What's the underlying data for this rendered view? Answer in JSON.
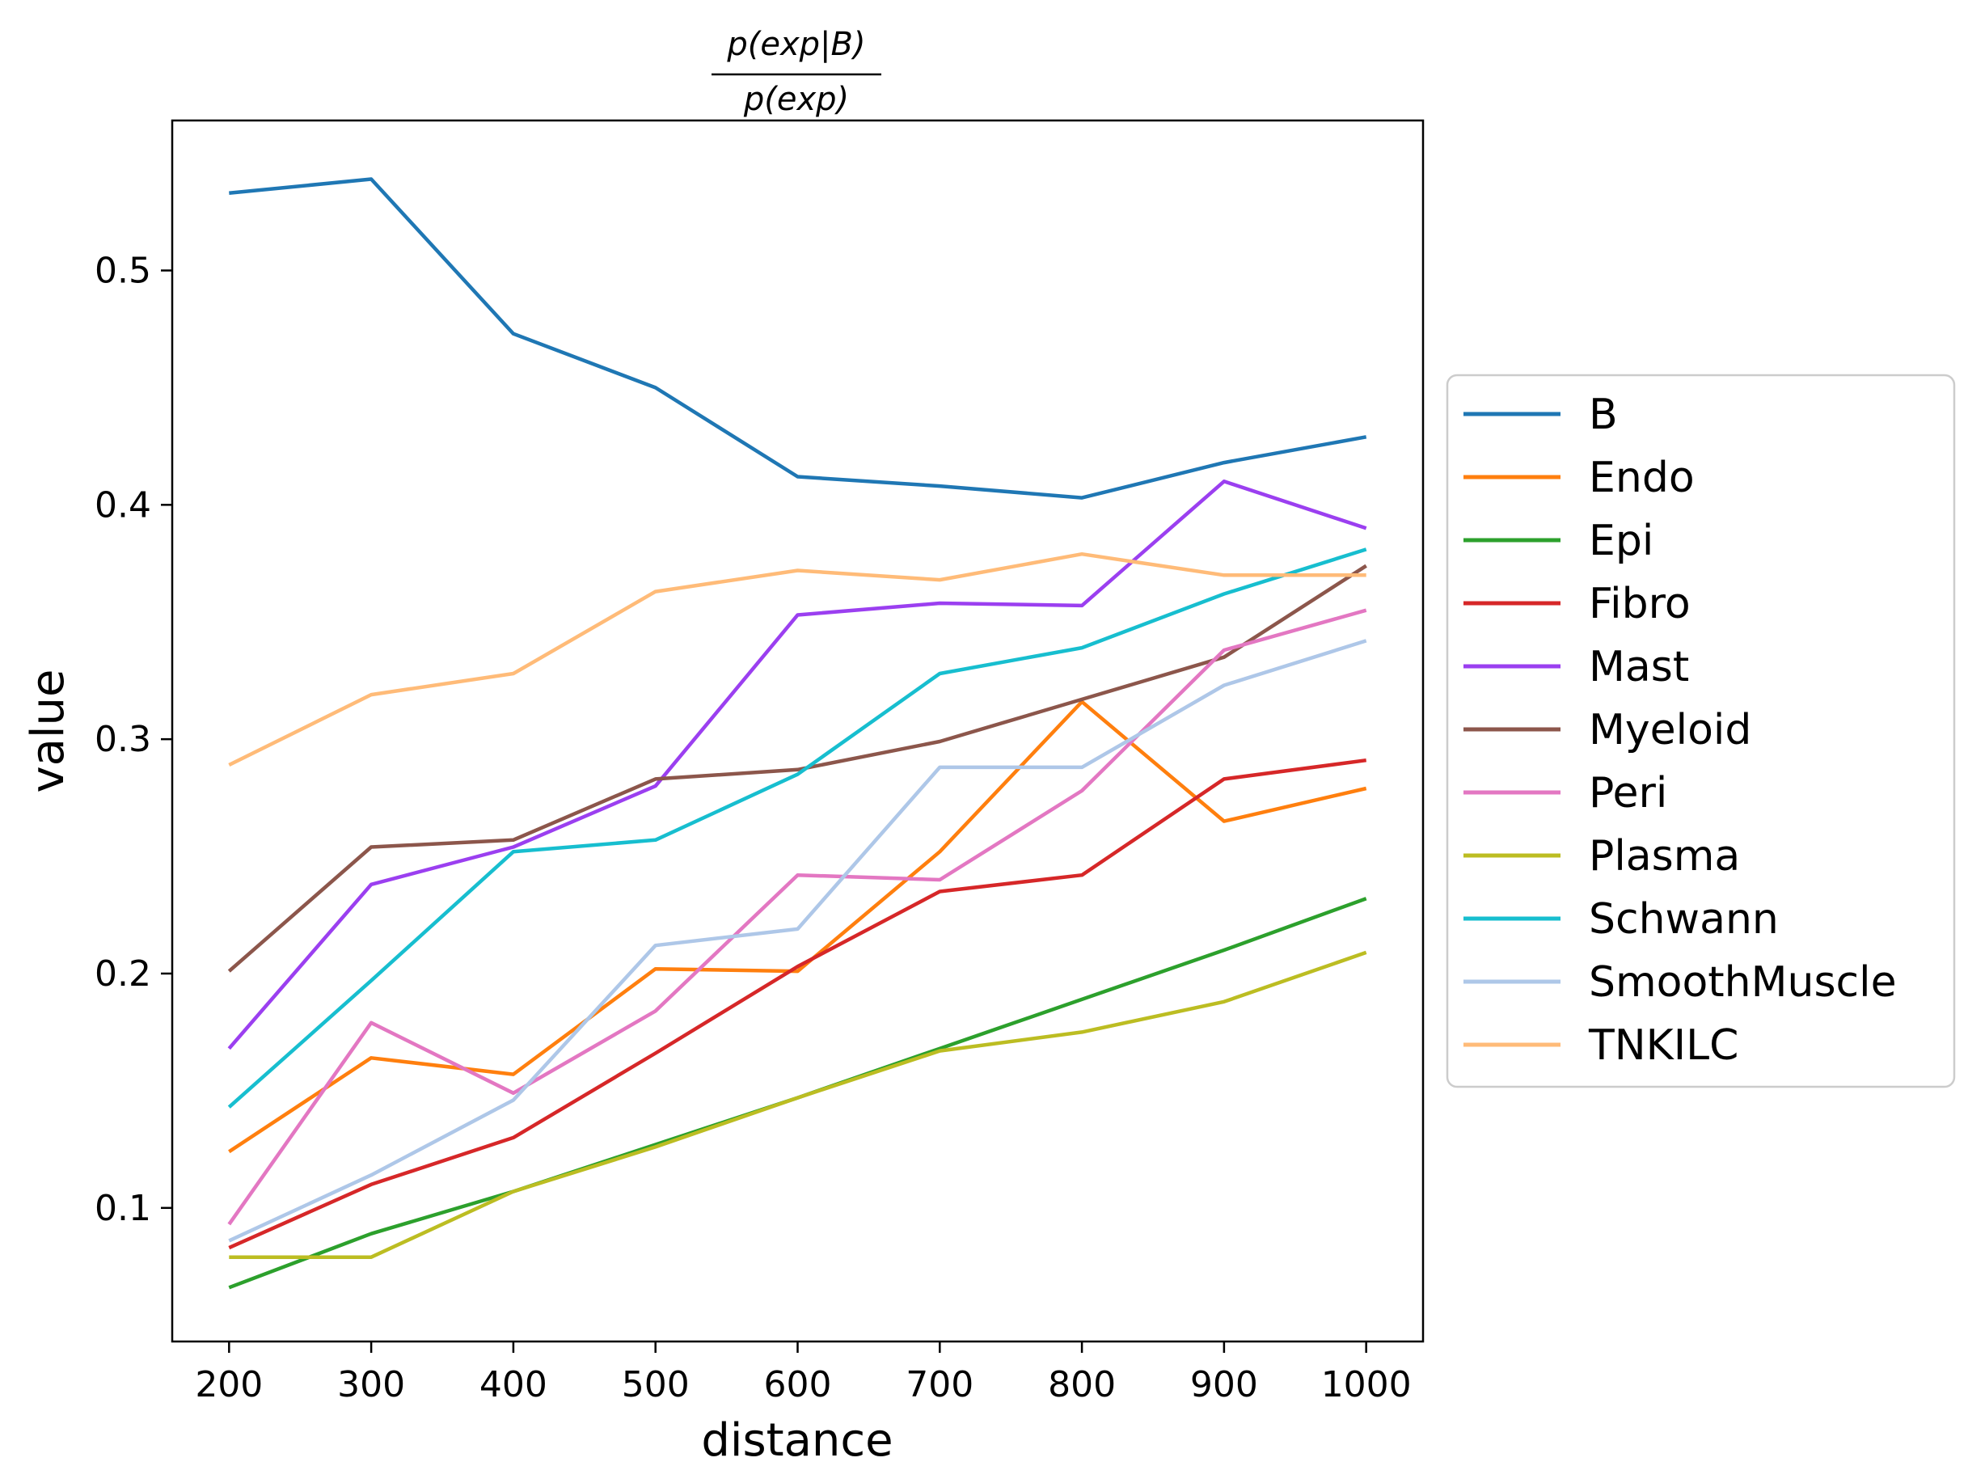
{
  "chart_data": {
    "type": "line",
    "title": {
      "numerator": "p(exp|B)",
      "denominator": "p(exp)"
    },
    "xlabel": "distance",
    "ylabel": "value",
    "x": [
      200,
      300,
      400,
      500,
      600,
      700,
      800,
      900,
      1000
    ],
    "x_ticks": [
      200,
      300,
      400,
      500,
      600,
      700,
      800,
      900,
      1000
    ],
    "y_ticks": [
      0.1,
      0.2,
      0.3,
      0.4,
      0.5
    ],
    "y_tick_labels": [
      "0.1",
      "0.2",
      "0.3",
      "0.4",
      "0.5"
    ],
    "xlim": [
      160,
      1040
    ],
    "ylim": [
      0.043,
      0.564
    ],
    "grid": false,
    "legend_position": "right, outside the plot area, vertically centered",
    "series": [
      {
        "name": "B",
        "color": "#1f77b4",
        "values": [
          0.533,
          0.539,
          0.473,
          0.45,
          0.412,
          0.408,
          0.403,
          0.418,
          0.429
        ]
      },
      {
        "name": "Endo",
        "color": "#ff7f0e",
        "values": [
          0.124,
          0.164,
          0.157,
          0.202,
          0.201,
          0.252,
          0.316,
          0.265,
          0.279
        ]
      },
      {
        "name": "Epi",
        "color": "#2ca02c",
        "values": [
          0.066,
          0.089,
          0.107,
          0.127,
          0.147,
          0.168,
          0.189,
          0.21,
          0.232
        ]
      },
      {
        "name": "Fibro",
        "color": "#d62728",
        "values": [
          0.083,
          0.11,
          0.13,
          0.166,
          0.203,
          0.235,
          0.242,
          0.283,
          0.291
        ]
      },
      {
        "name": "Mast",
        "color": "#9b3ff0",
        "values": [
          0.168,
          0.238,
          0.254,
          0.28,
          0.353,
          0.358,
          0.357,
          0.41,
          0.39
        ]
      },
      {
        "name": "Myeloid",
        "color": "#8c564b",
        "values": [
          0.201,
          0.254,
          0.257,
          0.283,
          0.287,
          0.299,
          0.317,
          0.335,
          0.374
        ]
      },
      {
        "name": "Peri",
        "color": "#e377c2",
        "values": [
          0.093,
          0.179,
          0.149,
          0.184,
          0.242,
          0.24,
          0.278,
          0.338,
          0.355
        ]
      },
      {
        "name": "Plasma",
        "color": "#bcbd22",
        "values": [
          0.079,
          0.079,
          0.107,
          0.126,
          0.147,
          0.167,
          0.175,
          0.188,
          0.209
        ]
      },
      {
        "name": "Schwann",
        "color": "#17becf",
        "values": [
          0.143,
          0.197,
          0.252,
          0.257,
          0.285,
          0.328,
          0.339,
          0.362,
          0.381
        ]
      },
      {
        "name": "SmoothMuscle",
        "color": "#aec7e8",
        "values": [
          0.086,
          0.114,
          0.146,
          0.212,
          0.219,
          0.288,
          0.288,
          0.323,
          0.342
        ]
      },
      {
        "name": "TNKILC",
        "color": "#ffbb78",
        "values": [
          0.289,
          0.319,
          0.328,
          0.363,
          0.372,
          0.368,
          0.379,
          0.37,
          0.37
        ]
      }
    ]
  }
}
